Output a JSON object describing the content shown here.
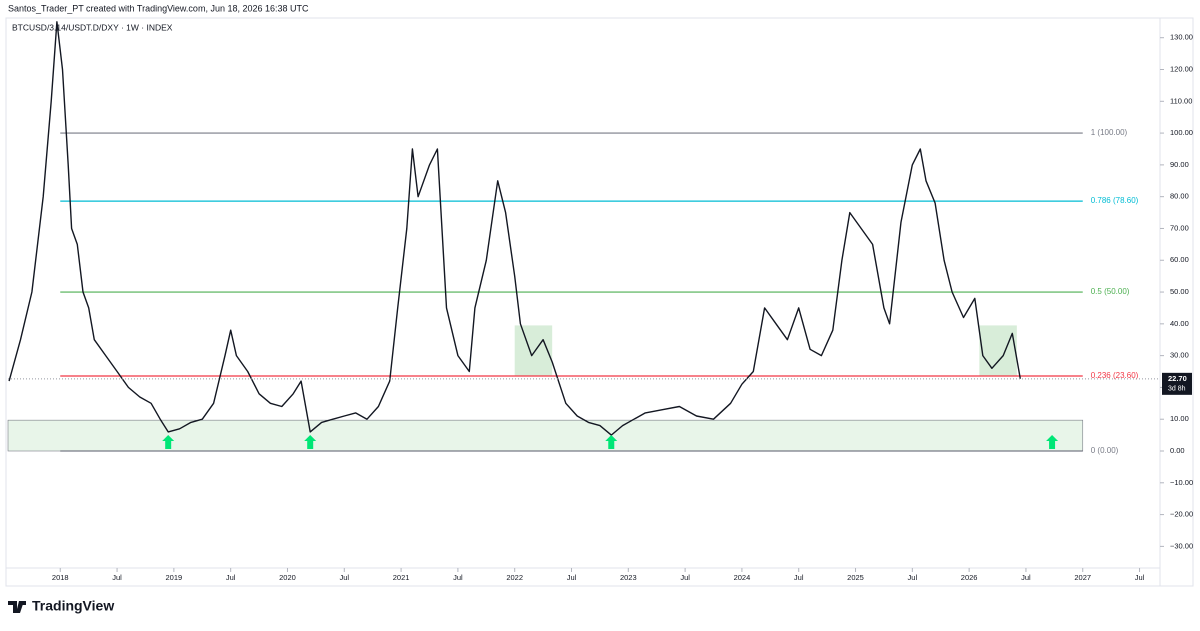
{
  "header": {
    "credit": "Santos_Trader_PT created with TradingView.com, Jun 18, 2026 16:38 UTC",
    "brand": "TradingView"
  },
  "chart_data": {
    "type": "line",
    "title": "BTCUSD/3.14/USDT.D/DXY · 1W · INDEX",
    "x": [
      2017.55,
      2017.65,
      2017.75,
      2017.85,
      2017.92,
      2017.97,
      2018.02,
      2018.07,
      2018.1,
      2018.15,
      2018.2,
      2018.25,
      2018.3,
      2018.4,
      2018.5,
      2018.6,
      2018.7,
      2018.8,
      2018.88,
      2018.95,
      2019.05,
      2019.15,
      2019.25,
      2019.35,
      2019.45,
      2019.5,
      2019.55,
      2019.65,
      2019.75,
      2019.85,
      2019.95,
      2020.05,
      2020.12,
      2020.2,
      2020.3,
      2020.4,
      2020.5,
      2020.6,
      2020.7,
      2020.8,
      2020.9,
      2020.97,
      2021.05,
      2021.1,
      2021.15,
      2021.25,
      2021.32,
      2021.4,
      2021.5,
      2021.6,
      2021.65,
      2021.75,
      2021.85,
      2021.92,
      2022.0,
      2022.05,
      2022.15,
      2022.25,
      2022.33,
      2022.45,
      2022.55,
      2022.65,
      2022.75,
      2022.85,
      2022.95,
      2023.05,
      2023.15,
      2023.3,
      2023.45,
      2023.6,
      2023.75,
      2023.9,
      2024.0,
      2024.1,
      2024.2,
      2024.3,
      2024.4,
      2024.5,
      2024.6,
      2024.7,
      2024.8,
      2024.88,
      2024.95,
      2025.05,
      2025.15,
      2025.25,
      2025.3,
      2025.4,
      2025.5,
      2025.57,
      2025.62,
      2025.7,
      2025.78,
      2025.85,
      2025.95,
      2026.05,
      2026.12,
      2026.2,
      2026.3,
      2026.38,
      2026.45
    ],
    "series": [
      {
        "name": "BTCUSD/3.14/USDT.D/DXY",
        "color": "#131722",
        "values": [
          22,
          35,
          50,
          80,
          110,
          135,
          120,
          90,
          70,
          65,
          50,
          45,
          35,
          30,
          25,
          20,
          17,
          15,
          10,
          6,
          7,
          9,
          10,
          15,
          30,
          38,
          30,
          25,
          18,
          15,
          14,
          18,
          22,
          6,
          9,
          10,
          11,
          12,
          10,
          14,
          22,
          45,
          70,
          95,
          80,
          90,
          95,
          45,
          30,
          25,
          45,
          60,
          85,
          75,
          55,
          40,
          30,
          35,
          28,
          15,
          11,
          9,
          8,
          5,
          8,
          10,
          12,
          13,
          14,
          11,
          10,
          15,
          21,
          25,
          45,
          40,
          35,
          45,
          32,
          30,
          38,
          60,
          75,
          70,
          65,
          45,
          40,
          72,
          90,
          95,
          85,
          78,
          60,
          50,
          42,
          48,
          30,
          26,
          30,
          37,
          22.7
        ]
      }
    ],
    "xlim": [
      2017.54,
      2027.68
    ],
    "ylim": [
      -36.8,
      136.2
    ],
    "xticks": [
      2018,
      {
        "value": 2018.5,
        "label": "Jul"
      },
      2019,
      {
        "value": 2019.5,
        "label": "Jul"
      },
      2020,
      {
        "value": 2020.5,
        "label": "Jul"
      },
      2021,
      {
        "value": 2021.5,
        "label": "Jul"
      },
      2022,
      {
        "value": 2022.5,
        "label": "Jul"
      },
      2023,
      {
        "value": 2023.5,
        "label": "Jul"
      },
      2024,
      {
        "value": 2024.5,
        "label": "Jul"
      },
      2025,
      {
        "value": 2025.5,
        "label": "Jul"
      },
      2026,
      {
        "value": 2026.5,
        "label": "Jul"
      },
      2027,
      {
        "value": 2027.5,
        "label": "Jul"
      }
    ],
    "yticks": [
      {
        "value": -30,
        "label": "−30.00"
      },
      {
        "value": -20,
        "label": "−20.00"
      },
      {
        "value": -10,
        "label": "−10.00"
      },
      {
        "value": 0,
        "label": "0.00"
      },
      {
        "value": 10,
        "label": "10.00"
      },
      {
        "value": 20,
        "label": "20.00"
      },
      {
        "value": 30,
        "label": "30.00"
      },
      {
        "value": 40,
        "label": "40.00"
      },
      {
        "value": 50,
        "label": "50.00"
      },
      {
        "value": 60,
        "label": "60.00"
      },
      {
        "value": 70,
        "label": "70.00"
      },
      {
        "value": 80,
        "label": "80.00"
      },
      {
        "value": 90,
        "label": "90.00"
      },
      {
        "value": 100,
        "label": "100.00"
      },
      {
        "value": 110,
        "label": "110.00"
      },
      {
        "value": 120,
        "label": "120.00"
      },
      {
        "value": 130,
        "label": "130.00"
      }
    ],
    "fib_levels": [
      {
        "value": 100,
        "label": "1 (100.00)",
        "color": "#787b86"
      },
      {
        "value": 78.6,
        "label": "0.786 (78.60)",
        "color": "#00bcd4"
      },
      {
        "value": 50,
        "label": "0.5 (50.00)",
        "color": "#4caf50"
      },
      {
        "value": 23.6,
        "label": "0.236 (23.60)",
        "color": "#f23645"
      },
      {
        "value": 0,
        "label": "0 (0.00)",
        "color": "#787b86"
      }
    ],
    "support_zone": {
      "range": [
        0,
        9.7
      ],
      "color": "#e8f5e9"
    },
    "highlight_boxes": [
      {
        "x": [
          2022.0,
          2022.33
        ],
        "y": [
          23.6,
          39.5
        ]
      },
      {
        "x": [
          2026.09,
          2026.42
        ],
        "y": [
          23.6,
          39.5
        ]
      }
    ],
    "signal_arrows": [
      2018.95,
      2020.2,
      2022.85,
      2026.73
    ],
    "last_price": {
      "value": 22.7,
      "label": "22.70",
      "countdown": "3d 8h"
    }
  }
}
